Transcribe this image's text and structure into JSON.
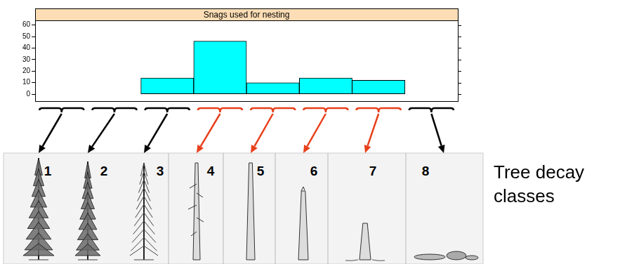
{
  "chart_data": {
    "type": "bar",
    "title": "Snags used for nesting",
    "categories": [
      "1",
      "2",
      "3",
      "4",
      "5",
      "6",
      "7",
      "8"
    ],
    "values": [
      0,
      0,
      14,
      46,
      10,
      14,
      12,
      0
    ],
    "color": "#00ffff",
    "ylim": [
      -6,
      64
    ],
    "yticks": [
      0,
      10,
      20,
      30,
      40,
      50,
      60
    ],
    "grid": false,
    "tick_labels": "y"
  },
  "diagram": {
    "label": "Tree decay classes",
    "arrow_colors": [
      "black",
      "black",
      "black",
      "#e8401c",
      "#e8401c",
      "#e8401c",
      "#e8401c",
      "black"
    ]
  }
}
